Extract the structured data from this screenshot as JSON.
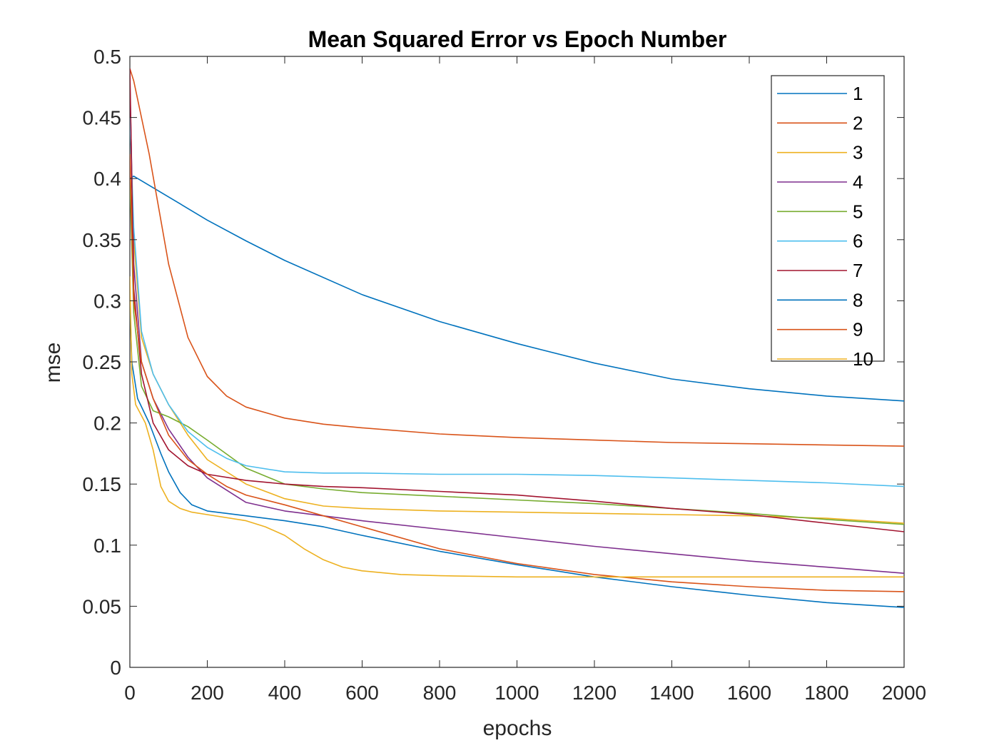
{
  "chart_data": {
    "type": "line",
    "title": "Mean Squared Error vs Epoch Number",
    "xlabel": "epochs",
    "ylabel": "mse",
    "xlim": [
      0,
      2000
    ],
    "ylim": [
      0,
      0.5
    ],
    "xticks": [
      0,
      200,
      400,
      600,
      800,
      1000,
      1200,
      1400,
      1600,
      1800,
      2000
    ],
    "yticks": [
      0,
      0.05,
      0.1,
      0.15,
      0.2,
      0.25,
      0.3,
      0.35,
      0.4,
      0.45,
      0.5
    ],
    "ytick_labels": [
      "0",
      "0.05",
      "0.1",
      "0.15",
      "0.2",
      "0.25",
      "0.3",
      "0.35",
      "0.4",
      "0.45",
      "0.5"
    ],
    "grid": false,
    "legend_position": "top-right",
    "series": [
      {
        "name": "1",
        "color": "#0072BD",
        "x": [
          0,
          10,
          100,
          200,
          300,
          400,
          600,
          800,
          1000,
          1200,
          1400,
          1600,
          1800,
          2000
        ],
        "y": [
          0.4,
          0.402,
          0.385,
          0.366,
          0.349,
          0.333,
          0.305,
          0.283,
          0.265,
          0.249,
          0.236,
          0.228,
          0.222,
          0.218
        ]
      },
      {
        "name": "2",
        "color": "#D95319",
        "x": [
          0,
          10,
          50,
          100,
          150,
          200,
          250,
          300,
          400,
          500,
          600,
          800,
          1000,
          1200,
          1400,
          1600,
          1800,
          2000
        ],
        "y": [
          0.49,
          0.48,
          0.42,
          0.33,
          0.27,
          0.238,
          0.222,
          0.213,
          0.204,
          0.199,
          0.196,
          0.191,
          0.188,
          0.186,
          0.184,
          0.183,
          0.182,
          0.181
        ]
      },
      {
        "name": "3",
        "color": "#EDB120",
        "x": [
          0,
          10,
          30,
          60,
          100,
          150,
          200,
          300,
          400,
          500,
          600,
          800,
          1000,
          1200,
          1400,
          1600,
          1800,
          2000
        ],
        "y": [
          0.4,
          0.35,
          0.27,
          0.24,
          0.215,
          0.19,
          0.17,
          0.15,
          0.138,
          0.132,
          0.13,
          0.128,
          0.127,
          0.126,
          0.125,
          0.124,
          0.122,
          0.118
        ]
      },
      {
        "name": "4",
        "color": "#7E2F8E",
        "x": [
          0,
          10,
          30,
          60,
          100,
          150,
          200,
          300,
          400,
          600,
          800,
          1000,
          1200,
          1400,
          1600,
          1800,
          2000
        ],
        "y": [
          0.48,
          0.33,
          0.25,
          0.22,
          0.195,
          0.172,
          0.155,
          0.135,
          0.128,
          0.12,
          0.113,
          0.106,
          0.099,
          0.093,
          0.087,
          0.082,
          0.077
        ]
      },
      {
        "name": "5",
        "color": "#77AC30",
        "x": [
          0,
          10,
          30,
          60,
          100,
          150,
          200,
          300,
          400,
          500,
          600,
          800,
          1000,
          1200,
          1400,
          1600,
          1800,
          2000
        ],
        "y": [
          0.4,
          0.29,
          0.23,
          0.21,
          0.205,
          0.197,
          0.186,
          0.163,
          0.15,
          0.146,
          0.143,
          0.14,
          0.137,
          0.134,
          0.13,
          0.126,
          0.121,
          0.117
        ]
      },
      {
        "name": "6",
        "color": "#4DBEEE",
        "x": [
          0,
          10,
          30,
          60,
          100,
          150,
          200,
          250,
          300,
          400,
          500,
          600,
          800,
          1000,
          1200,
          1400,
          1600,
          1800,
          2000
        ],
        "y": [
          0.45,
          0.36,
          0.275,
          0.24,
          0.215,
          0.193,
          0.18,
          0.171,
          0.165,
          0.16,
          0.159,
          0.159,
          0.158,
          0.158,
          0.157,
          0.155,
          0.153,
          0.151,
          0.148
        ]
      },
      {
        "name": "7",
        "color": "#A2142F",
        "x": [
          0,
          10,
          30,
          60,
          100,
          150,
          200,
          300,
          400,
          500,
          600,
          800,
          1000,
          1200,
          1400,
          1600,
          1800,
          2000
        ],
        "y": [
          0.49,
          0.31,
          0.24,
          0.2,
          0.178,
          0.165,
          0.158,
          0.153,
          0.15,
          0.148,
          0.147,
          0.144,
          0.141,
          0.136,
          0.13,
          0.125,
          0.118,
          0.111
        ]
      },
      {
        "name": "8",
        "color": "#0072BD",
        "x": [
          0,
          5,
          20,
          50,
          80,
          100,
          130,
          160,
          200,
          300,
          400,
          500,
          600,
          800,
          1000,
          1200,
          1400,
          1600,
          1800,
          2000
        ],
        "y": [
          0.3,
          0.25,
          0.22,
          0.2,
          0.175,
          0.16,
          0.143,
          0.133,
          0.128,
          0.124,
          0.12,
          0.115,
          0.108,
          0.095,
          0.084,
          0.074,
          0.066,
          0.059,
          0.053,
          0.049
        ]
      },
      {
        "name": "9",
        "color": "#D95319",
        "x": [
          0,
          10,
          30,
          60,
          100,
          150,
          200,
          250,
          300,
          400,
          500,
          600,
          800,
          1000,
          1200,
          1400,
          1600,
          1800,
          2000
        ],
        "y": [
          0.42,
          0.3,
          0.25,
          0.22,
          0.19,
          0.17,
          0.158,
          0.148,
          0.141,
          0.133,
          0.124,
          0.115,
          0.097,
          0.085,
          0.076,
          0.07,
          0.066,
          0.063,
          0.062
        ]
      },
      {
        "name": "10",
        "color": "#EDB120",
        "x": [
          0,
          5,
          15,
          40,
          60,
          80,
          100,
          130,
          160,
          200,
          300,
          350,
          400,
          450,
          500,
          550,
          600,
          700,
          800,
          1000,
          1200,
          1400,
          1600,
          1800,
          2000
        ],
        "y": [
          0.32,
          0.24,
          0.215,
          0.2,
          0.178,
          0.148,
          0.136,
          0.13,
          0.127,
          0.125,
          0.12,
          0.115,
          0.108,
          0.097,
          0.088,
          0.082,
          0.079,
          0.076,
          0.075,
          0.074,
          0.074,
          0.074,
          0.074,
          0.074,
          0.074
        ]
      }
    ]
  }
}
